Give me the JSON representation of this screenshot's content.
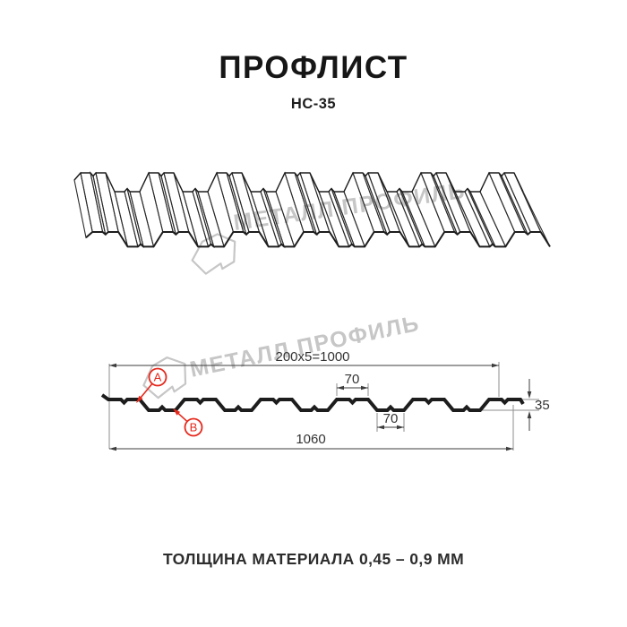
{
  "title": "ПРОФЛИСТ",
  "subtitle": "НС-35",
  "watermark": {
    "text": "МЕТАЛЛ ПРОФИЛЬ",
    "color": "#c6c6c6"
  },
  "section": {
    "dim_top_width": "200x5=1000",
    "dim_flange_top": "70",
    "dim_flange_bottom": "70",
    "dim_overall_width": "1060",
    "dim_height": "35",
    "marker_a": "A",
    "marker_b": "B"
  },
  "footer": {
    "thickness_note": "ТОЛЩИНА МАТЕРИАЛА 0,45 – 0,9 ММ"
  },
  "colors": {
    "line": "#1d1d1d",
    "face_line": "#2a2a2a",
    "dimension": "#3c3c3c",
    "extension": "#8d8d8d",
    "marker_red": "#e5291d",
    "watermark": "#c6c6c6"
  }
}
